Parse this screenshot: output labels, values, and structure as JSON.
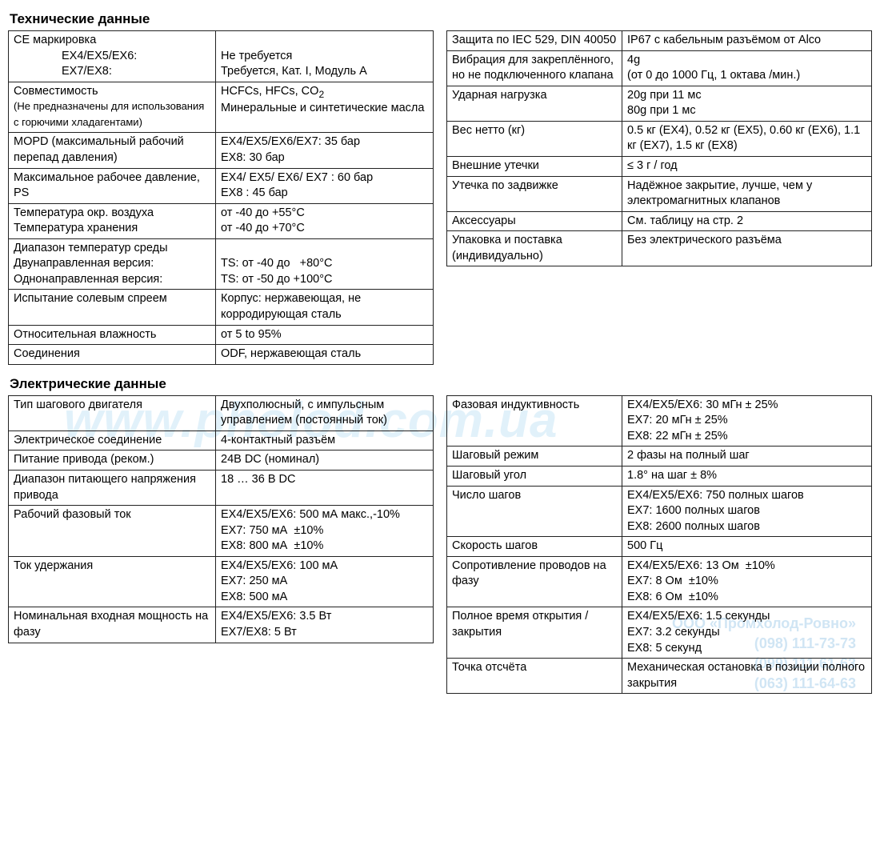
{
  "watermark_main": "www.pholod.com.ua",
  "watermark_contact": {
    "l1": "ООО «Промхолод-Ровно»",
    "l2": "(098) 111-73-73",
    "l3": "(099) 111-61-63",
    "l4": "(063) 111-64-63"
  },
  "section1_title": "Технические данные",
  "tech_left": [
    {
      "label": "СЕ маркировка\n<span class=\"indent\">EX4/EX5/EX6:</span><span class=\"indent\">EX7/EX8:</span>",
      "value": "<br>Не требуется<br>Требуется, Кат. I, Модуль А"
    },
    {
      "label": "Совместимость<br><span class=\"small\">(Не предназначены для использования с горючими хладагентами)</span>",
      "value": "HCFCs, HFCs, CO<sub>2</sub><br>Минеральные и синтетические масла"
    },
    {
      "label": "MOPD (максимальный рабочий перепад давления)",
      "value": "EX4/EX5/EX6/EX7: 35 бар<br>EX8: 30 бар"
    },
    {
      "label": "Максимальное рабочее давление, PS",
      "value": "EX4/ EX5/ EX6/ EX7 : 60 бар<br>EX8 : 45 бар"
    },
    {
      "label": "Температура окр. воздуха<br>Температура хранения",
      "value": "от -40 до +55°C<br>от -40 до +70°C"
    },
    {
      "label": "Диапазон температур среды<br>Двунаправленная версия:<br>Однонаправленная версия:",
      "value": "<br>TS: от -40 до&nbsp;&nbsp;&nbsp;+80°C<br>TS: от -50 до +100°C"
    },
    {
      "label": "Испытание солевым спреем",
      "value": "Корпус: нержавеющая, не корродирующая сталь"
    },
    {
      "label": "Относительная влажность",
      "value": "от 5 to 95%"
    },
    {
      "label": "Соединения",
      "value": "ODF, нержавеющая сталь"
    }
  ],
  "tech_right": [
    {
      "label": "Защита по IEC 529, DIN 40050",
      "value": "IP67 с кабельным разъёмом от Alco"
    },
    {
      "label": "Вибрация для закреплённого, но не подключенного клапана",
      "value": "4g<br>(от 0 до 1000 Гц, 1 октава /мин.)"
    },
    {
      "label": "Ударная нагрузка",
      "value": "20g при 11 мс<br>80g при 1 мс"
    },
    {
      "label": "Вес нетто (кг)",
      "value": "0.5 кг (EX4), 0.52 кг (EX5), 0.60 кг (EX6), 1.1 кг (EX7), 1.5 кг (EX8)"
    },
    {
      "label": "Внешние утечки",
      "value": "≤ 3 г / год"
    },
    {
      "label": "Утечка по задвижке",
      "value": "Надёжное закрытие, лучше, чем у электромагнитных клапанов"
    },
    {
      "label": "Аксессуары",
      "value": "См. таблицу на стр. 2"
    },
    {
      "label": "Упаковка и поставка (индивидуально)",
      "value": "Без электрического разъёма"
    }
  ],
  "section2_title": "Электрические данные",
  "elec_left": [
    {
      "label": "Тип шагового двигателя",
      "value": "Двухполюсный, с импульсным управлением (постоянный ток)"
    },
    {
      "label": "Электрическое соединение",
      "value": "4-контактный разъём"
    },
    {
      "label": "Питание привода (реком.)",
      "value": "24В DC (номинал)"
    },
    {
      "label": "Диапазон питающего напряжения привода",
      "value": "18 … 36 В DC"
    },
    {
      "label": "Рабочий фазовый ток",
      "value": "EX4/EX5/EX6: 500 мА макс.,-10%<br>EX7: 750 мА&nbsp;&nbsp;±10%<br>EX8: 800 мА&nbsp;&nbsp;±10%"
    },
    {
      "label": "Ток удержания",
      "value": "EX4/EX5/EX6: 100 мА<br>EX7: 250 мА<br>EX8: 500 мА"
    },
    {
      "label": "Номинальная входная мощность на фазу",
      "value": "EX4/EX5/EX6: 3.5 Вт<br>EX7/EX8: 5 Вт"
    }
  ],
  "elec_right": [
    {
      "label": "Фазовая индуктивность",
      "value": "EX4/EX5/EX6: 30 мГн ± 25%<br>EX7: 20 мГн ± 25%<br>EX8: 22 мГн ± 25%"
    },
    {
      "label": "Шаговый режим",
      "value": "2 фазы на полный шаг"
    },
    {
      "label": "Шаговый угол",
      "value": "1.8° на шаг ± 8%"
    },
    {
      "label": "Число шагов",
      "value": "EX4/EX5/EX6: 750 полных шагов<br>EX7: 1600 полных шагов<br>EX8: 2600 полных шагов"
    },
    {
      "label": "Скорость шагов",
      "value": "500 Гц"
    },
    {
      "label": "Сопротивление проводов на фазу",
      "value": "EX4/EX5/EX6: 13 Ом&nbsp;&nbsp;±10%<br>EX7: 8 Ом&nbsp;&nbsp;±10%<br>EX8: 6 Ом&nbsp;&nbsp;±10%"
    },
    {
      "label": "Полное время открытия / закрытия",
      "value": "EX4/EX5/EX6: 1.5 секунды<br>EX7: 3.2 секунды<br>EX8: 5 секунд"
    },
    {
      "label": "Точка отсчёта",
      "value": "Механическая остановка в позиции полного закрытия"
    }
  ]
}
